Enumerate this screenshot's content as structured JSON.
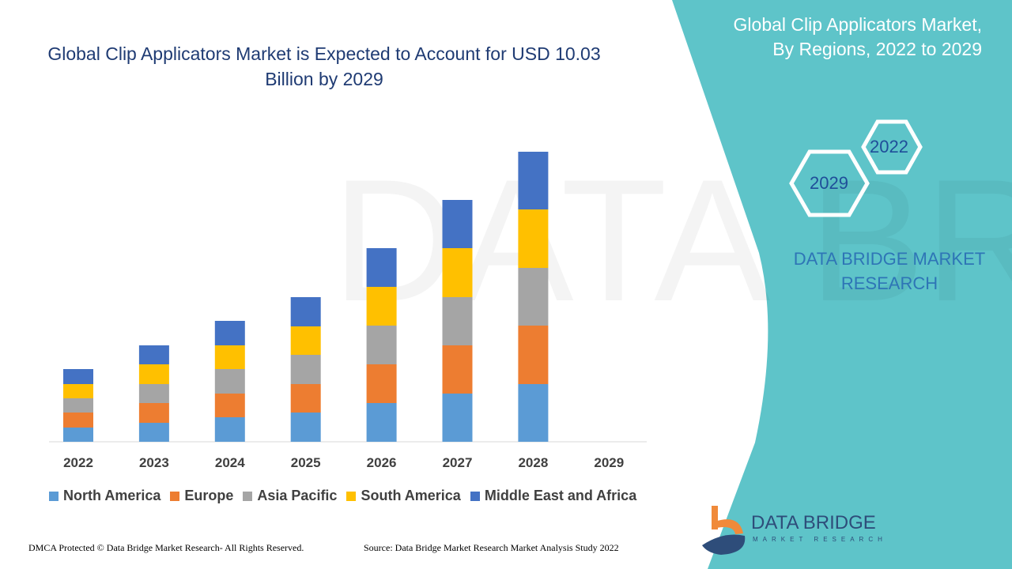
{
  "header": {
    "title": "Global Clip Applicators Market is Expected to Account for USD 10.03 Billion by 2029",
    "side_title": "Global Clip Applicators Market, By Regions, 2022 to 2029",
    "hex_start": "2022",
    "hex_end": "2029",
    "brand": "DATA BRIDGE MARKET RESEARCH"
  },
  "logo": {
    "name": "DATA BRIDGE",
    "sub": "MARKET RESEARCH"
  },
  "footer": {
    "copyright": "DMCA Protected © Data Bridge Market Research- All Rights Reserved.",
    "source": "Source: Data Bridge Market Research Market Analysis Study 2022"
  },
  "colors": {
    "panel": "#5ec4c9",
    "title": "#1f3b73"
  },
  "chart_data": {
    "type": "bar",
    "stacked": true,
    "title": "Global Clip Applicators Market is Expected to Account for USD 10.03 Billion by 2029",
    "xlabel": "",
    "ylabel": "",
    "y_axis_shown": false,
    "grid": false,
    "legend_position": "bottom",
    "ylim": [
      0,
      400
    ],
    "categories": [
      "2022",
      "2023",
      "2024",
      "2025",
      "2026",
      "2027",
      "2028",
      "2029"
    ],
    "series": [
      {
        "name": "North America",
        "color": "#5b9bd5",
        "values": [
          18,
          24,
          31,
          37,
          49,
          61,
          73,
          null
        ]
      },
      {
        "name": "Europe",
        "color": "#ed7d31",
        "values": [
          19,
          25,
          30,
          36,
          49,
          61,
          74,
          null
        ]
      },
      {
        "name": "Asia Pacific",
        "color": "#a5a5a5",
        "values": [
          18,
          24,
          31,
          37,
          49,
          61,
          73,
          null
        ]
      },
      {
        "name": "South America",
        "color": "#ffc000",
        "values": [
          18,
          25,
          30,
          36,
          49,
          62,
          74,
          null
        ]
      },
      {
        "name": "Middle East and Africa",
        "color": "#4472c4",
        "values": [
          19,
          24,
          31,
          37,
          49,
          61,
          73,
          null
        ]
      }
    ]
  }
}
